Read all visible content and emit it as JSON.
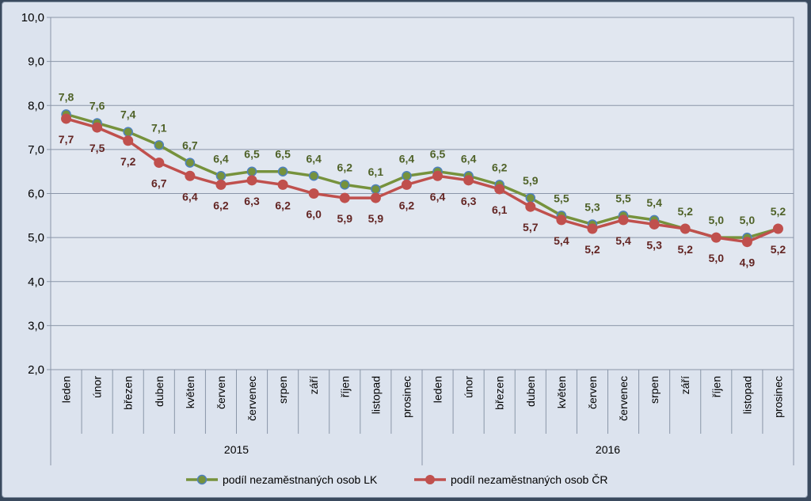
{
  "chart_data": {
    "type": "line",
    "ylim": [
      2.0,
      10.0
    ],
    "yticks": [
      "2,0",
      "3,0",
      "4,0",
      "5,0",
      "6,0",
      "7,0",
      "8,0",
      "9,0",
      "10,0"
    ],
    "categories": [
      "leden",
      "únor",
      "březen",
      "duben",
      "květen",
      "červen",
      "červenec",
      "srpen",
      "září",
      "říjen",
      "listopad",
      "prosinec",
      "leden",
      "únor",
      "březen",
      "duben",
      "květen",
      "červen",
      "červenec",
      "srpen",
      "září",
      "říjen",
      "listopad",
      "prosinec"
    ],
    "groups": [
      {
        "label": "2015",
        "count": 12
      },
      {
        "label": "2016",
        "count": 12
      }
    ],
    "series": [
      {
        "name": "podíl nezaměstnaných osob LK",
        "color": "#76923c",
        "marker": "#4f81bd",
        "label_color": "#4f6228",
        "label_position": "above",
        "values": [
          7.8,
          7.6,
          7.4,
          7.1,
          6.7,
          6.4,
          6.5,
          6.5,
          6.4,
          6.2,
          6.1,
          6.4,
          6.5,
          6.4,
          6.2,
          5.9,
          5.5,
          5.3,
          5.5,
          5.4,
          5.2,
          5.0,
          5.0,
          5.2
        ],
        "labels": [
          "7,8",
          "7,6",
          "7,4",
          "7,1",
          "6,7",
          "6,4",
          "6,5",
          "6,5",
          "6,4",
          "6,2",
          "6,1",
          "6,4",
          "6,5",
          "6,4",
          "6,2",
          "5,9",
          "5,5",
          "5,3",
          "5,5",
          "5,4",
          "5,2",
          "5,0",
          "5,0",
          "5,2"
        ]
      },
      {
        "name": "podíl nezaměstnaných osob ČR",
        "color": "#c0504d",
        "marker": "#c0504d",
        "label_color": "#632523",
        "label_position": "below",
        "values": [
          7.7,
          7.5,
          7.2,
          6.7,
          6.4,
          6.2,
          6.3,
          6.2,
          6.0,
          5.9,
          5.9,
          6.2,
          6.4,
          6.3,
          6.1,
          5.7,
          5.4,
          5.2,
          5.4,
          5.3,
          5.2,
          5.0,
          4.9,
          5.2
        ],
        "labels": [
          "7,7",
          "7,5",
          "7,2",
          "6,7",
          "6,4",
          "6,2",
          "6,3",
          "6,2",
          "6,0",
          "5,9",
          "5,9",
          "6,2",
          "6,4",
          "6,3",
          "6,1",
          "5,7",
          "5,4",
          "5,2",
          "5,4",
          "5,3",
          "5,2",
          "5,0",
          "4,9",
          "5,2"
        ]
      }
    ],
    "legend_position": "bottom",
    "grid": true
  }
}
